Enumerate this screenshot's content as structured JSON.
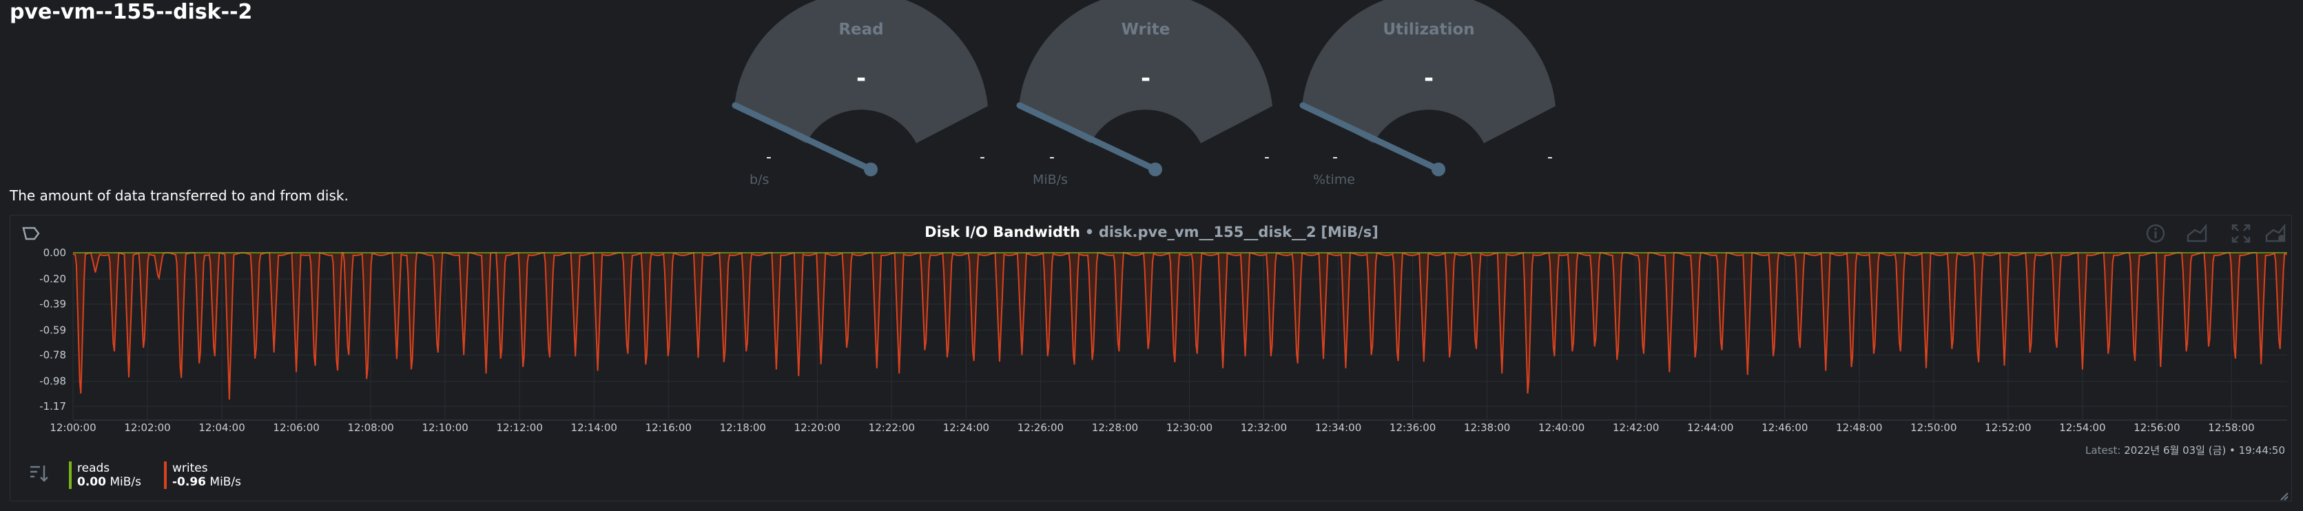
{
  "page": {
    "title": "pve-vm--155--disk--2",
    "description": "The amount of data transferred to and from disk."
  },
  "gauges": [
    {
      "title": "Read",
      "value": "-",
      "min": "-",
      "max": "-",
      "unit": "b/s"
    },
    {
      "title": "Write",
      "value": "-",
      "min": "-",
      "max": "-",
      "unit": "MiB/s"
    },
    {
      "title": "Utilization",
      "value": "-",
      "min": "-",
      "max": "-",
      "unit": "%time"
    }
  ],
  "chart": {
    "title": "Disk I/O Bandwidth",
    "separator": "•",
    "context": "disk.pve_vm__155__disk__2",
    "unit_label": "[MiB/s]",
    "latest_label": "Latest:",
    "latest_value": "2022년 6월 03일 (금) • 19:44:50",
    "legend": [
      {
        "name": "reads",
        "value": "0.00",
        "unit": "MiB/s",
        "color": "#7cb518"
      },
      {
        "name": "writes",
        "value": "-0.96",
        "unit": "MiB/s",
        "color": "#d9431f"
      }
    ],
    "toolbar_icons": [
      "info-icon",
      "chart-type-icon",
      "fullscreen-icon",
      "alert-icon"
    ]
  },
  "colors": {
    "background": "#1c1e22",
    "gauge_arc": "#41464c",
    "needle": "#4e6a80",
    "writes_line": "#d9431f",
    "reads_line": "#7cb518",
    "grid": "#2a2e33"
  },
  "chart_data": {
    "type": "area",
    "ylim": [
      -1.27,
      0.0
    ],
    "yticks": [
      0.0,
      -0.2,
      -0.39,
      -0.59,
      -0.78,
      -0.98,
      -1.17
    ],
    "ytick_labels": [
      "0.00",
      "-0.20",
      "-0.39",
      "-0.59",
      "-0.78",
      "-0.98",
      "-1.17"
    ],
    "x_range": [
      "12:00:00",
      "12:59:30"
    ],
    "xtick_labels": [
      "12:00:00",
      "12:02:00",
      "12:04:00",
      "12:06:00",
      "12:08:00",
      "12:10:00",
      "12:12:00",
      "12:14:00",
      "12:16:00",
      "12:18:00",
      "12:20:00",
      "12:22:00",
      "12:24:00",
      "12:26:00",
      "12:28:00",
      "12:30:00",
      "12:32:00",
      "12:34:00",
      "12:36:00",
      "12:38:00",
      "12:40:00",
      "12:42:00",
      "12:44:00",
      "12:46:00",
      "12:48:00",
      "12:50:00",
      "12:52:00",
      "12:54:00",
      "12:56:00",
      "12:58:00"
    ],
    "series": [
      {
        "name": "reads",
        "color": "#7cb518",
        "baseline": 0.0
      },
      {
        "name": "writes",
        "color": "#d9431f",
        "spikes_minutes": [
          0.2,
          0.6,
          1.1,
          1.5,
          1.9,
          2.3,
          2.9,
          3.4,
          3.8,
          4.2,
          4.9,
          5.4,
          6.0,
          6.5,
          7.1,
          7.4,
          7.9,
          8.7,
          9.1,
          9.8,
          10.5,
          11.1,
          11.5,
          12.1,
          12.8,
          13.5,
          14.1,
          14.9,
          15.4,
          16.0,
          16.8,
          17.5,
          18.1,
          18.9,
          19.5,
          20.1,
          20.8,
          21.6,
          22.2,
          22.9,
          23.5,
          24.2,
          24.9,
          25.5,
          26.2,
          26.9,
          27.4,
          28.1,
          28.9,
          29.6,
          30.2,
          30.9,
          31.5,
          32.2,
          32.9,
          33.6,
          34.2,
          34.9,
          35.6,
          36.3,
          37.0,
          37.7,
          38.4,
          39.1,
          39.8,
          40.3,
          40.9,
          41.5,
          42.2,
          42.9,
          43.6,
          44.3,
          45.0,
          45.7,
          46.4,
          47.1,
          47.8,
          48.4,
          49.1,
          49.8,
          50.5,
          51.2,
          51.9,
          52.6,
          53.3,
          54.0,
          54.7,
          55.4,
          56.1,
          56.8,
          57.4,
          58.1,
          58.8,
          59.3
        ],
        "spikes_values": [
          -1.17,
          -0.15,
          -0.82,
          -0.95,
          -0.79,
          -0.21,
          -1.04,
          -0.92,
          -0.86,
          -1.12,
          -0.88,
          -0.76,
          -0.91,
          -0.94,
          -0.98,
          -0.85,
          -1.05,
          -0.81,
          -0.97,
          -0.83,
          -0.78,
          -0.92,
          -0.88,
          -0.95,
          -0.87,
          -0.79,
          -0.9,
          -0.84,
          -0.93,
          -0.86,
          -0.8,
          -0.91,
          -0.82,
          -0.89,
          -0.94,
          -0.85,
          -0.79,
          -0.88,
          -0.92,
          -0.81,
          -0.87,
          -0.9,
          -0.83,
          -0.78,
          -0.86,
          -0.93,
          -0.89,
          -0.82,
          -0.8,
          -0.91,
          -0.84,
          -0.88,
          -0.79,
          -0.86,
          -0.92,
          -0.81,
          -0.88,
          -0.85,
          -0.9,
          -0.83,
          -0.87,
          -0.8,
          -0.92,
          -1.17,
          -0.86,
          -0.82,
          -0.78,
          -0.89,
          -0.84,
          -0.91,
          -0.87,
          -0.81,
          -0.93,
          -0.86,
          -0.79,
          -0.9,
          -0.95,
          -0.84,
          -0.82,
          -0.88,
          -0.8,
          -0.91,
          -0.86,
          -0.83,
          -0.79,
          -0.89,
          -0.84,
          -0.9,
          -0.87,
          -0.82,
          -0.78,
          -0.88,
          -0.85,
          -0.8
        ]
      }
    ]
  }
}
